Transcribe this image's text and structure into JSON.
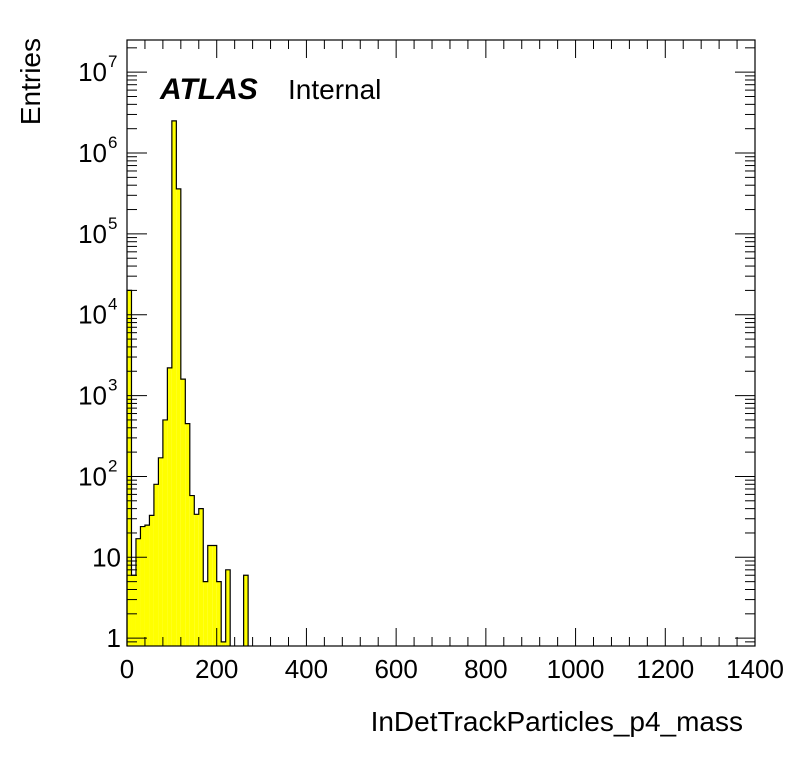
{
  "chart_data": {
    "type": "bar",
    "title": "",
    "xlabel": "InDetTrackParticles_p4_mass",
    "ylabel": "Entries",
    "xlim": [
      0,
      1400
    ],
    "ylim": [
      0.8,
      25000000
    ],
    "yscale": "log",
    "grid": false,
    "legend": "none",
    "bin_width": 10,
    "x_ticks": [
      0,
      200,
      400,
      600,
      800,
      1000,
      1200,
      1400
    ],
    "x_tick_labels": [
      "0",
      "200",
      "400",
      "600",
      "800",
      "1000",
      "1200",
      "1400"
    ],
    "y_tick_labels": [
      {
        "value": 1,
        "base": "1",
        "exp": ""
      },
      {
        "value": 10,
        "base": "10",
        "exp": ""
      },
      {
        "value": 100,
        "base": "10",
        "exp": "2"
      },
      {
        "value": 1000,
        "base": "10",
        "exp": "3"
      },
      {
        "value": 10000,
        "base": "10",
        "exp": "4"
      },
      {
        "value": 100000,
        "base": "10",
        "exp": "5"
      },
      {
        "value": 1000000,
        "base": "10",
        "exp": "6"
      },
      {
        "value": 10000000,
        "base": "10",
        "exp": "7"
      }
    ],
    "fill_color": "#ffff00",
    "line_color": "#000000",
    "bins": [
      {
        "x": 0,
        "y": 20000
      },
      {
        "x": 10,
        "y": 6
      },
      {
        "x": 20,
        "y": 17
      },
      {
        "x": 30,
        "y": 24
      },
      {
        "x": 40,
        "y": 25
      },
      {
        "x": 50,
        "y": 33
      },
      {
        "x": 60,
        "y": 80
      },
      {
        "x": 70,
        "y": 170
      },
      {
        "x": 80,
        "y": 500
      },
      {
        "x": 90,
        "y": 2200
      },
      {
        "x": 100,
        "y": 2500000
      },
      {
        "x": 110,
        "y": 360000
      },
      {
        "x": 120,
        "y": 1600
      },
      {
        "x": 130,
        "y": 450
      },
      {
        "x": 140,
        "y": 58
      },
      {
        "x": 150,
        "y": 34
      },
      {
        "x": 160,
        "y": 40
      },
      {
        "x": 170,
        "y": 5
      },
      {
        "x": 180,
        "y": 14
      },
      {
        "x": 190,
        "y": 14
      },
      {
        "x": 200,
        "y": 5
      },
      {
        "x": 210,
        "y": 0.9
      },
      {
        "x": 220,
        "y": 7
      },
      {
        "x": 260,
        "y": 6
      }
    ]
  },
  "labels": {
    "atlas": "ATLAS",
    "internal": "Internal"
  }
}
